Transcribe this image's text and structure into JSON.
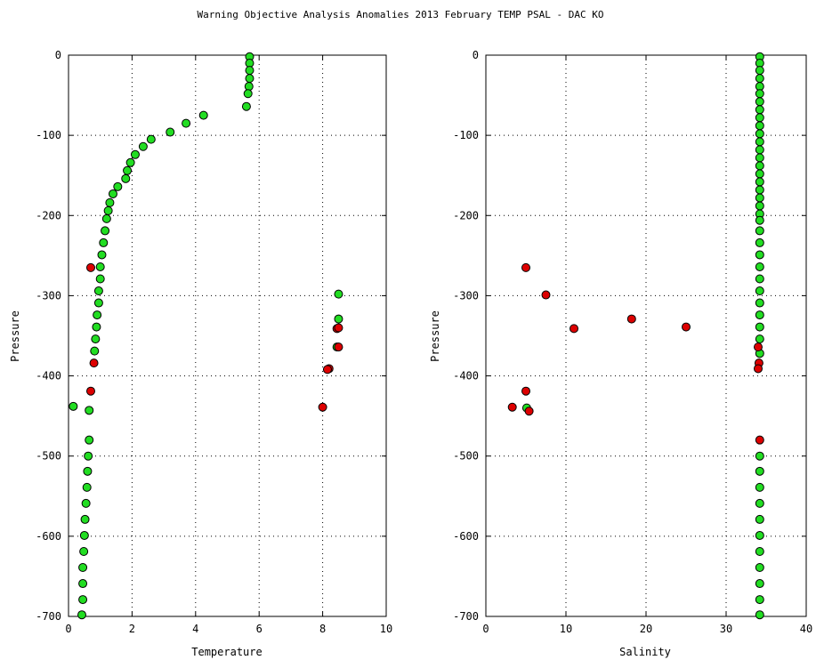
{
  "title": "Warning Objective Analysis Anomalies 2013 February TEMP PSAL - DAC KO",
  "colors": {
    "good": "#22dd22",
    "bad": "#dd0000",
    "outline": "#000000",
    "grid": "#000000"
  },
  "chart_data": [
    {
      "type": "scatter",
      "xlabel": "Temperature",
      "ylabel": "Pressure",
      "xlim": [
        0,
        10
      ],
      "ylim": [
        -700,
        0
      ],
      "xticks": [
        0,
        2,
        4,
        6,
        8,
        10
      ],
      "yticks": [
        0,
        -100,
        -200,
        -300,
        -400,
        -500,
        -600,
        -700
      ],
      "grid": true,
      "series": [
        {
          "color": "#22dd22",
          "points": [
            [
              5.7,
              -2
            ],
            [
              5.7,
              -10
            ],
            [
              5.7,
              -19
            ],
            [
              5.7,
              -29
            ],
            [
              5.68,
              -39
            ],
            [
              5.65,
              -48
            ],
            [
              5.6,
              -64
            ],
            [
              4.25,
              -75
            ],
            [
              3.7,
              -85
            ],
            [
              3.2,
              -96
            ],
            [
              2.6,
              -105
            ],
            [
              2.35,
              -114
            ],
            [
              2.1,
              -124
            ],
            [
              1.95,
              -134
            ],
            [
              1.85,
              -144
            ],
            [
              1.8,
              -154
            ],
            [
              1.55,
              -164
            ],
            [
              1.4,
              -173
            ],
            [
              1.3,
              -184
            ],
            [
              1.25,
              -194
            ],
            [
              1.2,
              -204
            ],
            [
              1.15,
              -219
            ],
            [
              1.1,
              -234
            ],
            [
              1.05,
              -249
            ],
            [
              1.0,
              -264
            ],
            [
              1.0,
              -279
            ],
            [
              0.95,
              -294
            ],
            [
              0.95,
              -309
            ],
            [
              0.9,
              -324
            ],
            [
              0.88,
              -339
            ],
            [
              0.85,
              -354
            ],
            [
              0.82,
              -369
            ],
            [
              0.15,
              -438
            ],
            [
              0.65,
              -443
            ],
            [
              0.65,
              -480
            ],
            [
              0.62,
              -500
            ],
            [
              0.6,
              -519
            ],
            [
              0.58,
              -539
            ],
            [
              0.55,
              -559
            ],
            [
              0.52,
              -579
            ],
            [
              0.5,
              -599
            ],
            [
              0.48,
              -619
            ],
            [
              0.45,
              -639
            ],
            [
              0.45,
              -659
            ],
            [
              0.45,
              -679
            ],
            [
              0.42,
              -698
            ],
            [
              8.5,
              -298
            ],
            [
              8.5,
              -329
            ],
            [
              8.45,
              -364
            ]
          ]
        },
        {
          "color": "#dd0000",
          "points": [
            [
              0.7,
              -265
            ],
            [
              0.8,
              -384
            ],
            [
              0.7,
              -419
            ],
            [
              8.0,
              -439
            ],
            [
              8.2,
              -391
            ],
            [
              8.15,
              -392
            ],
            [
              8.45,
              -341
            ],
            [
              8.5,
              -340
            ],
            [
              8.5,
              -364
            ]
          ]
        }
      ]
    },
    {
      "type": "scatter",
      "xlabel": "Salinity",
      "ylabel": "Pressure",
      "xlim": [
        0,
        40
      ],
      "ylim": [
        -700,
        0
      ],
      "xticks": [
        0,
        10,
        20,
        30,
        40
      ],
      "yticks": [
        0,
        -100,
        -200,
        -300,
        -400,
        -500,
        -600,
        -700
      ],
      "grid": true,
      "series": [
        {
          "color": "#22dd22",
          "points": [
            [
              34.2,
              -2
            ],
            [
              34.2,
              -10
            ],
            [
              34.2,
              -19
            ],
            [
              34.2,
              -29
            ],
            [
              34.2,
              -39
            ],
            [
              34.2,
              -48
            ],
            [
              34.2,
              -58
            ],
            [
              34.2,
              -68
            ],
            [
              34.2,
              -78
            ],
            [
              34.2,
              -88
            ],
            [
              34.2,
              -98
            ],
            [
              34.2,
              -108
            ],
            [
              34.2,
              -118
            ],
            [
              34.2,
              -128
            ],
            [
              34.2,
              -138
            ],
            [
              34.2,
              -148
            ],
            [
              34.2,
              -158
            ],
            [
              34.2,
              -168
            ],
            [
              34.2,
              -178
            ],
            [
              34.2,
              -188
            ],
            [
              34.2,
              -198
            ],
            [
              34.2,
              -206
            ],
            [
              34.2,
              -219
            ],
            [
              34.2,
              -234
            ],
            [
              34.2,
              -249
            ],
            [
              34.2,
              -264
            ],
            [
              34.2,
              -279
            ],
            [
              34.2,
              -294
            ],
            [
              34.2,
              -309
            ],
            [
              34.2,
              -324
            ],
            [
              34.2,
              -339
            ],
            [
              34.2,
              -354
            ],
            [
              34.2,
              -372
            ],
            [
              5.1,
              -440
            ],
            [
              34.2,
              -500
            ],
            [
              34.2,
              -519
            ],
            [
              34.2,
              -539
            ],
            [
              34.2,
              -559
            ],
            [
              34.2,
              -579
            ],
            [
              34.2,
              -599
            ],
            [
              34.2,
              -619
            ],
            [
              34.2,
              -639
            ],
            [
              34.2,
              -659
            ],
            [
              34.2,
              -679
            ],
            [
              34.2,
              -698
            ]
          ]
        },
        {
          "color": "#dd0000",
          "points": [
            [
              5.0,
              -265
            ],
            [
              7.5,
              -299
            ],
            [
              18.2,
              -329
            ],
            [
              11.0,
              -341
            ],
            [
              25.0,
              -339
            ],
            [
              3.3,
              -439
            ],
            [
              5.0,
              -419
            ],
            [
              5.4,
              -444
            ],
            [
              34.0,
              -364
            ],
            [
              34.1,
              -384
            ],
            [
              34.0,
              -391
            ],
            [
              34.2,
              -480
            ]
          ]
        }
      ]
    }
  ]
}
